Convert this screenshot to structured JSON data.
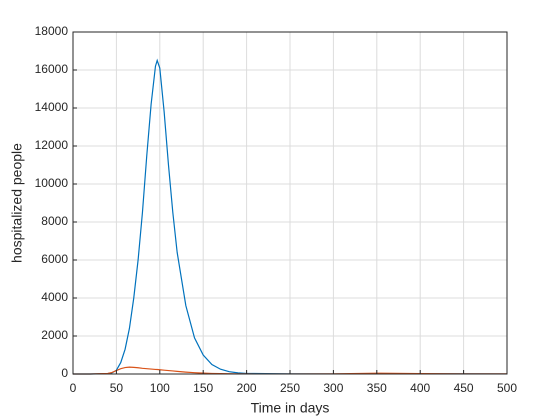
{
  "chart_data": {
    "type": "line",
    "xlabel": "Time in days",
    "ylabel": "hospitalized people",
    "x": [
      0,
      20,
      40,
      45,
      50,
      55,
      60,
      65,
      70,
      75,
      80,
      85,
      90,
      95,
      97,
      100,
      105,
      110,
      115,
      120,
      130,
      140,
      150,
      160,
      170,
      180,
      190,
      200,
      250,
      300,
      350,
      400,
      450,
      500
    ],
    "series": [
      {
        "color": "#0072bd",
        "values": [
          0,
          0,
          20,
          60,
          200,
          600,
          1300,
          2400,
          4000,
          6000,
          8500,
          11500,
          14200,
          16200,
          16500,
          16100,
          13800,
          11000,
          8500,
          6400,
          3600,
          1900,
          1000,
          500,
          250,
          120,
          60,
          30,
          5,
          2,
          10,
          10,
          5,
          2
        ]
      },
      {
        "color": "#d95319",
        "values": [
          0,
          0,
          30,
          80,
          180,
          280,
          340,
          360,
          350,
          330,
          300,
          280,
          260,
          240,
          235,
          225,
          200,
          180,
          160,
          140,
          100,
          70,
          45,
          30,
          20,
          12,
          8,
          5,
          2,
          5,
          40,
          20,
          10,
          5
        ]
      }
    ],
    "xlim": [
      0,
      500
    ],
    "xticks": [
      0,
      50,
      100,
      150,
      200,
      250,
      300,
      350,
      400,
      450,
      500
    ],
    "ylim": [
      0,
      18000
    ],
    "yticks": [
      0,
      2000,
      4000,
      6000,
      8000,
      10000,
      12000,
      14000,
      16000,
      18000
    ],
    "grid": true
  }
}
